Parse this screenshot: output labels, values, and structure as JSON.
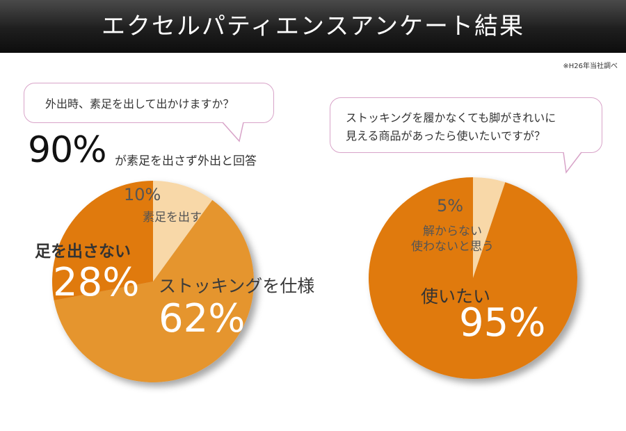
{
  "header": {
    "title": "エクセルパティエンスアンケート結果"
  },
  "source_note": "※H26年当社調べ",
  "colors": {
    "dark_orange": "#e07a10",
    "mid_orange": "#e5952f",
    "cream": "#f8d8a8"
  },
  "survey1": {
    "question": "外出時、素足を出して出かけますか？",
    "stat_big": "90%",
    "stat_desc": "が素足を出さず外出と回答"
  },
  "survey2": {
    "question_lines": [
      "ストッキングを履かなくても脚がきれいに",
      "見える商品があったら使いたいですが？"
    ]
  },
  "chart_data": [
    {
      "type": "pie",
      "slices": [
        {
          "label": "素足を出す",
          "value_label": "10%",
          "value": 10,
          "color": "#f8d8a8"
        },
        {
          "label": "ストッキングを仕様",
          "value_label": "62%",
          "value": 62,
          "color": "#e5952f"
        },
        {
          "label": "足を出さない",
          "value_label": "28%",
          "value": 28,
          "color": "#e07a10"
        }
      ]
    },
    {
      "type": "pie",
      "slices": [
        {
          "label_lines": [
            "解からない",
            "使わないと思う"
          ],
          "value_label": "5%",
          "value": 5,
          "color": "#f8d8a8"
        },
        {
          "label": "使いたい",
          "value_label": "95%",
          "value": 95,
          "color": "#e07a10"
        }
      ]
    }
  ]
}
